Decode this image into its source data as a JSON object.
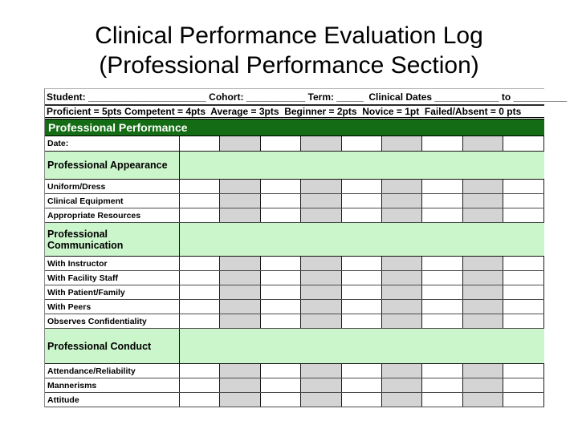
{
  "slide": {
    "title_line1": "Clinical Performance Evaluation Log",
    "title_line2": "(Professional Performance Section)"
  },
  "table": {
    "student_line": "Student: ______________________ Cohort: ___________ Term: _____  Clinical Dates ____________ to __________",
    "scale_line": "Proficient = 5pts Competent = 4pts  Average = 3pts  Beginner = 2pts  Novice = 1pt  Failed/Absent = 0 pts",
    "section_header": "Professional Performance",
    "date_label": "Date:",
    "num_data_columns": 9,
    "rows": [
      {
        "type": "section",
        "label": "Professional Appearance"
      },
      {
        "type": "item",
        "label": "Uniform/Dress"
      },
      {
        "type": "item",
        "label": "Clinical Equipment"
      },
      {
        "type": "item",
        "label": "Appropriate Resources"
      },
      {
        "type": "section",
        "label": "Professional Communication"
      },
      {
        "type": "item",
        "label": "With Instructor"
      },
      {
        "type": "item",
        "label": "With Facility Staff"
      },
      {
        "type": "item",
        "label": "With Patient/Family"
      },
      {
        "type": "item",
        "label": "With Peers"
      },
      {
        "type": "item",
        "label": "Observes Confidentiality"
      },
      {
        "type": "section",
        "label": "Professional Conduct"
      },
      {
        "type": "item",
        "label": "Attendance/Reliability"
      },
      {
        "type": "item",
        "label": "Mannerisms"
      },
      {
        "type": "item",
        "label": "Attitude"
      }
    ]
  },
  "colors": {
    "header_green": "#146C14",
    "section_green": "#CBF5CB",
    "shaded_gray": "#D4D4D4"
  }
}
